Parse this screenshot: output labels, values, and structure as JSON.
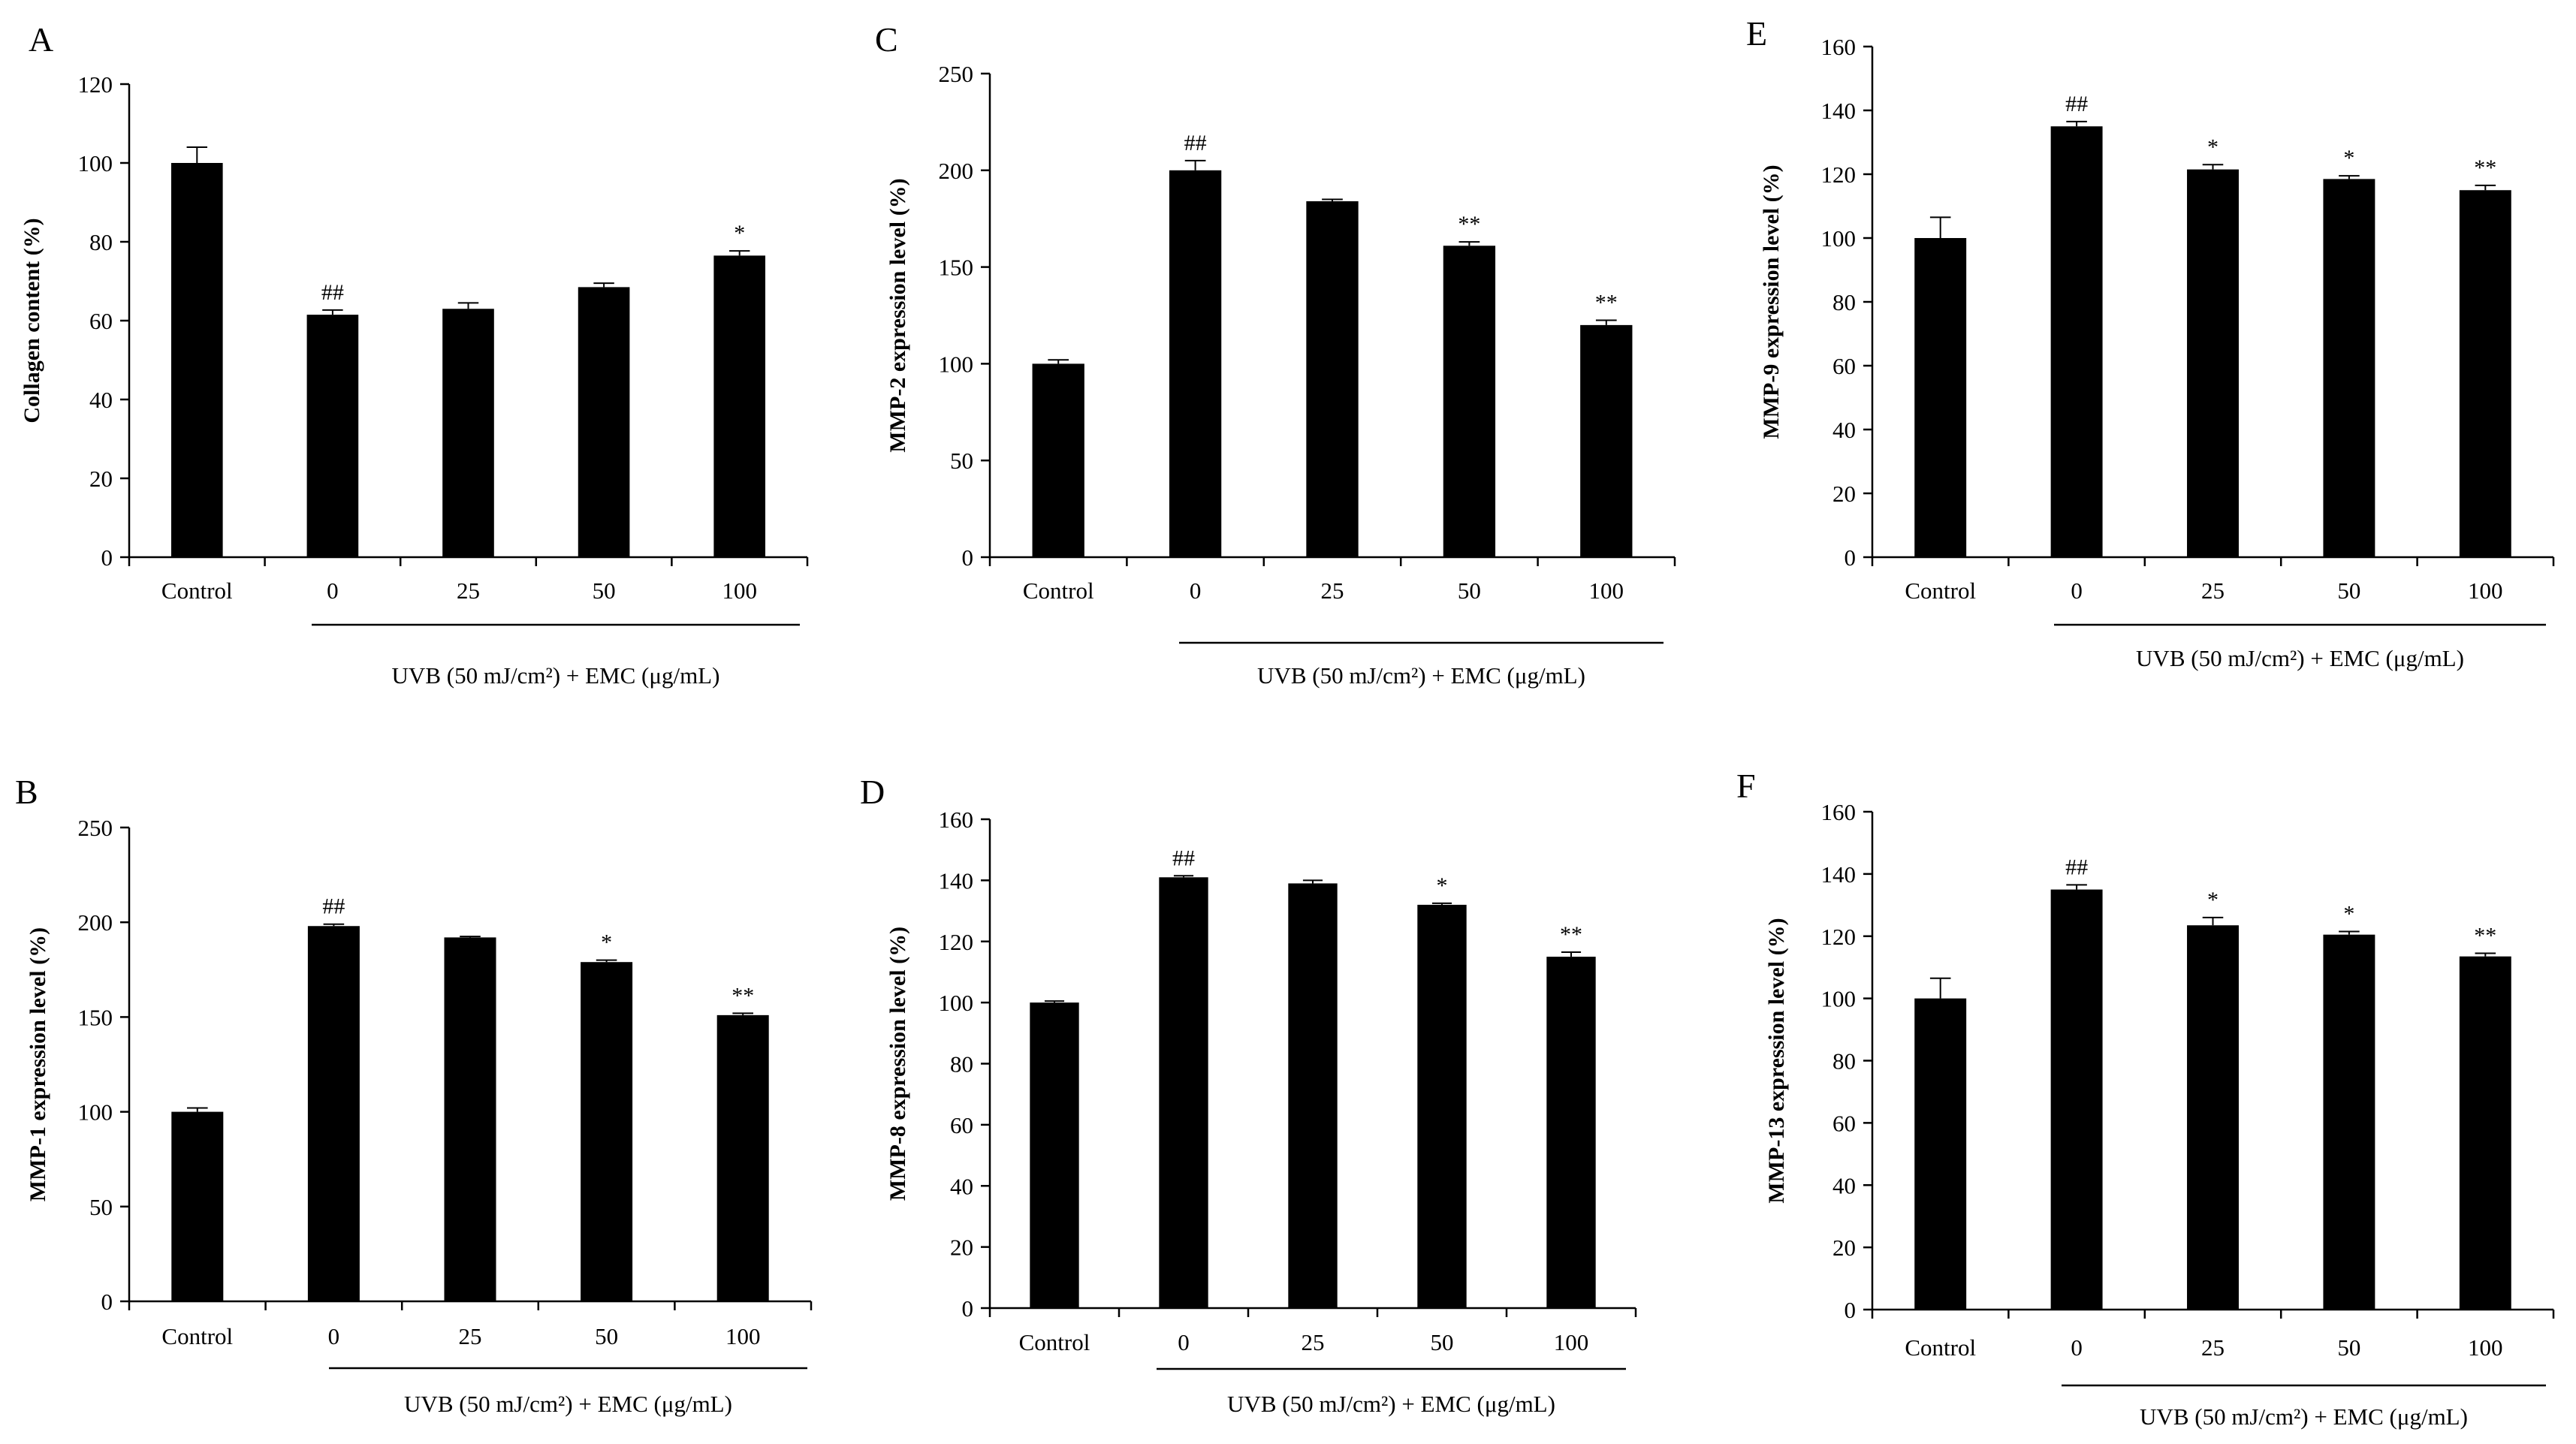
{
  "chart_data": [
    {
      "panel": "A",
      "type": "bar",
      "categories": [
        "Control",
        "0",
        "25",
        "50",
        "100"
      ],
      "values": [
        100,
        61.5,
        63,
        68.5,
        76.5
      ],
      "errors": [
        4,
        1.2,
        1.5,
        1,
        1.2
      ],
      "annotations": [
        "",
        "##",
        "",
        "",
        "*"
      ],
      "ylabel": "Collagen content (%)",
      "xlabel": "UVB (50 mJ/cm²) + EMC (μg/mL)",
      "ylim": [
        0,
        120
      ],
      "yticks": [
        0,
        20,
        40,
        60,
        80,
        100,
        120
      ]
    },
    {
      "panel": "B",
      "type": "bar",
      "categories": [
        "Control",
        "0",
        "25",
        "50",
        "100"
      ],
      "values": [
        100,
        198,
        192,
        179,
        151
      ],
      "errors": [
        2,
        1,
        0.5,
        1,
        1
      ],
      "annotations": [
        "",
        "##",
        "",
        "*",
        "**"
      ],
      "ylabel": "MMP-1 expression level (%)",
      "xlabel": "UVB (50 mJ/cm²) + EMC (μg/mL)",
      "ylim": [
        0,
        250
      ],
      "yticks": [
        0,
        50,
        100,
        150,
        200,
        250
      ]
    },
    {
      "panel": "C",
      "type": "bar",
      "categories": [
        "Control",
        "0",
        "25",
        "50",
        "100"
      ],
      "values": [
        100,
        200,
        184,
        161,
        120
      ],
      "errors": [
        2,
        5,
        1,
        2,
        2.5
      ],
      "annotations": [
        "",
        "##",
        "",
        "**",
        "**"
      ],
      "ylabel": "MMP-2 expression level (%)",
      "xlabel": "UVB (50 mJ/cm²) + EMC (μg/mL)",
      "ylim": [
        0,
        250
      ],
      "yticks": [
        0,
        50,
        100,
        150,
        200,
        250
      ]
    },
    {
      "panel": "D",
      "type": "bar",
      "categories": [
        "Control",
        "0",
        "25",
        "50",
        "100"
      ],
      "values": [
        100,
        141,
        139,
        132,
        115
      ],
      "errors": [
        0.5,
        0.5,
        1,
        0.5,
        1.5
      ],
      "annotations": [
        "",
        "##",
        "",
        "*",
        "**"
      ],
      "ylabel": "MMP-8 expression level (%)",
      "xlabel": "UVB (50 mJ/cm²) + EMC (μg/mL)",
      "ylim": [
        0,
        160
      ],
      "yticks": [
        0,
        20,
        40,
        60,
        80,
        100,
        120,
        140,
        160
      ]
    },
    {
      "panel": "E",
      "type": "bar",
      "categories": [
        "Control",
        "0",
        "25",
        "50",
        "100"
      ],
      "values": [
        100,
        135,
        121.5,
        118.5,
        115
      ],
      "errors": [
        6.5,
        1.5,
        1.5,
        1,
        1.5
      ],
      "annotations": [
        "",
        "##",
        "*",
        "*",
        "**"
      ],
      "ylabel": "MMP-9 expression level (%)",
      "xlabel": "UVB (50 mJ/cm²) + EMC (μg/mL)",
      "ylim": [
        0,
        160
      ],
      "yticks": [
        0,
        20,
        40,
        60,
        80,
        100,
        120,
        140,
        160
      ]
    },
    {
      "panel": "F",
      "type": "bar",
      "categories": [
        "Control",
        "0",
        "25",
        "50",
        "100"
      ],
      "values": [
        100,
        135,
        123.5,
        120.5,
        113.5
      ],
      "errors": [
        6.5,
        1.5,
        2.5,
        1,
        1
      ],
      "annotations": [
        "",
        "##",
        "*",
        "*",
        "**"
      ],
      "ylabel": "MMP-13 expression level (%)",
      "xlabel": "UVB (50 mJ/cm²) + EMC (μg/mL)",
      "ylim": [
        0,
        160
      ],
      "yticks": [
        0,
        20,
        40,
        60,
        80,
        100,
        120,
        140,
        160
      ]
    }
  ]
}
